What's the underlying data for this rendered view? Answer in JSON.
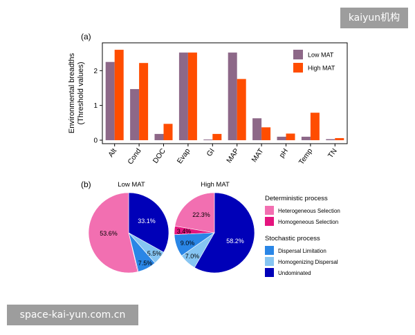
{
  "watermarks": {
    "top": "kaiyun机构",
    "bottom": "space-kai-yun.com.cn"
  },
  "colors": {
    "low_mat": "#8d6888",
    "high_mat": "#ff4d00",
    "heterogeneous_selection": "#f26fb1",
    "homogeneous_selection": "#e5147e",
    "dispersal_limitation": "#2a86e6",
    "homogenizing_dispersal": "#86c5f2",
    "undominated": "#0000b8"
  },
  "chart_data": [
    {
      "type": "bar",
      "panel_label": "(a)",
      "ylabel_line1": "Environmental breadths",
      "ylabel_line2": "(Threshold values)",
      "xlabel": "",
      "categories": [
        "Alt",
        "Cond",
        "DOC",
        "Evap",
        "GI",
        "MAP",
        "MAT",
        "pH",
        "Temp",
        "TN"
      ],
      "series": [
        {
          "name": "Low MAT",
          "values": [
            2.25,
            1.47,
            0.18,
            2.52,
            0.02,
            2.52,
            0.63,
            0.1,
            0.1,
            0.03
          ]
        },
        {
          "name": "High MAT",
          "values": [
            2.6,
            2.22,
            0.47,
            2.52,
            0.18,
            1.76,
            0.37,
            0.19,
            0.79,
            0.06
          ]
        }
      ],
      "ylim": [
        -0.1,
        2.8
      ],
      "yticks": [
        "0",
        "1",
        "2"
      ],
      "grid": false,
      "legend_position": "top-right"
    },
    {
      "type": "pie",
      "panel_label": "(b)",
      "pies": [
        {
          "title": "Low MAT",
          "slices": [
            {
              "name": "Undominated",
              "value": 33.1,
              "label": "33.1%"
            },
            {
              "name": "Homogenizing Dispersal",
              "value": 5.5,
              "label": "5.5%"
            },
            {
              "name": "Dispersal Limitation",
              "value": 7.5,
              "label": "7.5%"
            },
            {
              "name": "Homogeneous Selection",
              "value": 0.3,
              "label": ""
            },
            {
              "name": "Heterogeneous Selection",
              "value": 53.6,
              "label": "53.6%"
            }
          ]
        },
        {
          "title": "High MAT",
          "slices": [
            {
              "name": "Undominated",
              "value": 58.2,
              "label": "58.2%"
            },
            {
              "name": "Homogenizing Dispersal",
              "value": 7.0,
              "label": "7.0%"
            },
            {
              "name": "Dispersal Limitation",
              "value": 9.0,
              "label": "9.0%"
            },
            {
              "name": "Homogeneous Selection",
              "value": 3.4,
              "label": "3.4%"
            },
            {
              "name": "Heterogeneous Selection",
              "value": 22.3,
              "label": "22.3%"
            }
          ]
        }
      ],
      "legend_groups": [
        {
          "title": "Deterministic process",
          "items": [
            {
              "name": "Heterogeneous Selection",
              "color_key": "heterogeneous_selection"
            },
            {
              "name": "Homogeneous Selection",
              "color_key": "homogeneous_selection"
            }
          ]
        },
        {
          "title": "Stochastic process",
          "items": [
            {
              "name": "Dispersal Limitation",
              "color_key": "dispersal_limitation"
            },
            {
              "name": "Homogenizing Dispersal",
              "color_key": "homogenizing_dispersal"
            },
            {
              "name": "Undominated",
              "color_key": "undominated"
            }
          ]
        }
      ]
    }
  ]
}
